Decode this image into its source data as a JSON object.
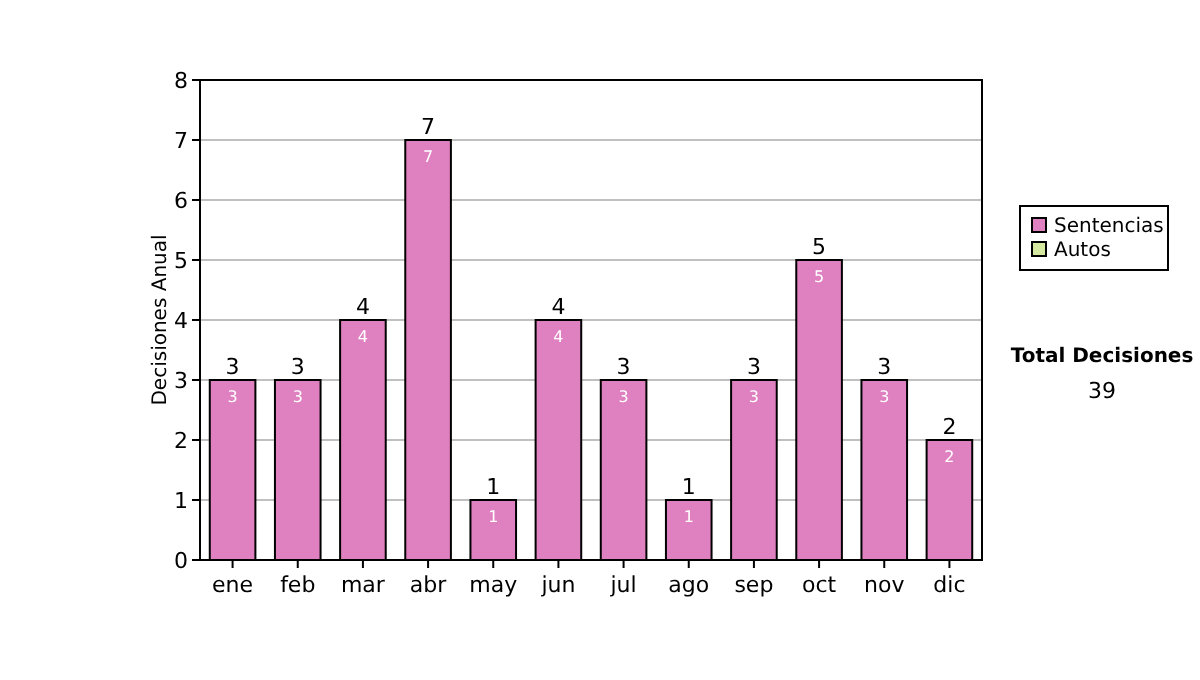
{
  "chart_data": {
    "type": "bar",
    "ylabel": "Decisiones Anual",
    "categories": [
      "ene",
      "feb",
      "mar",
      "abr",
      "may",
      "jun",
      "jul",
      "ago",
      "sep",
      "oct",
      "nov",
      "dic"
    ],
    "series": [
      {
        "name": "Sentencias",
        "color": "#df80c0",
        "values": [
          3,
          3,
          4,
          7,
          1,
          4,
          3,
          1,
          3,
          5,
          3,
          2
        ],
        "value_labels": [
          "3",
          "3",
          "4",
          "7",
          "1",
          "4",
          "3",
          "1",
          "3",
          "5",
          "3",
          "2"
        ]
      },
      {
        "name": "Autos",
        "color": "#d4e8a0",
        "values": [
          0,
          0,
          0,
          0,
          0,
          0,
          0,
          0,
          0,
          0,
          0,
          0
        ]
      }
    ],
    "stacked": true,
    "totals": [
      "3",
      "3",
      "4",
      "7",
      "1",
      "4",
      "3",
      "1",
      "3",
      "5",
      "3",
      "2"
    ],
    "ylim": [
      0,
      8
    ],
    "yticks": [
      0,
      1,
      2,
      3,
      4,
      5,
      6,
      7,
      8
    ],
    "grid": "y",
    "legend": "right",
    "annotations": [
      "Total Decisiones",
      "39"
    ]
  }
}
